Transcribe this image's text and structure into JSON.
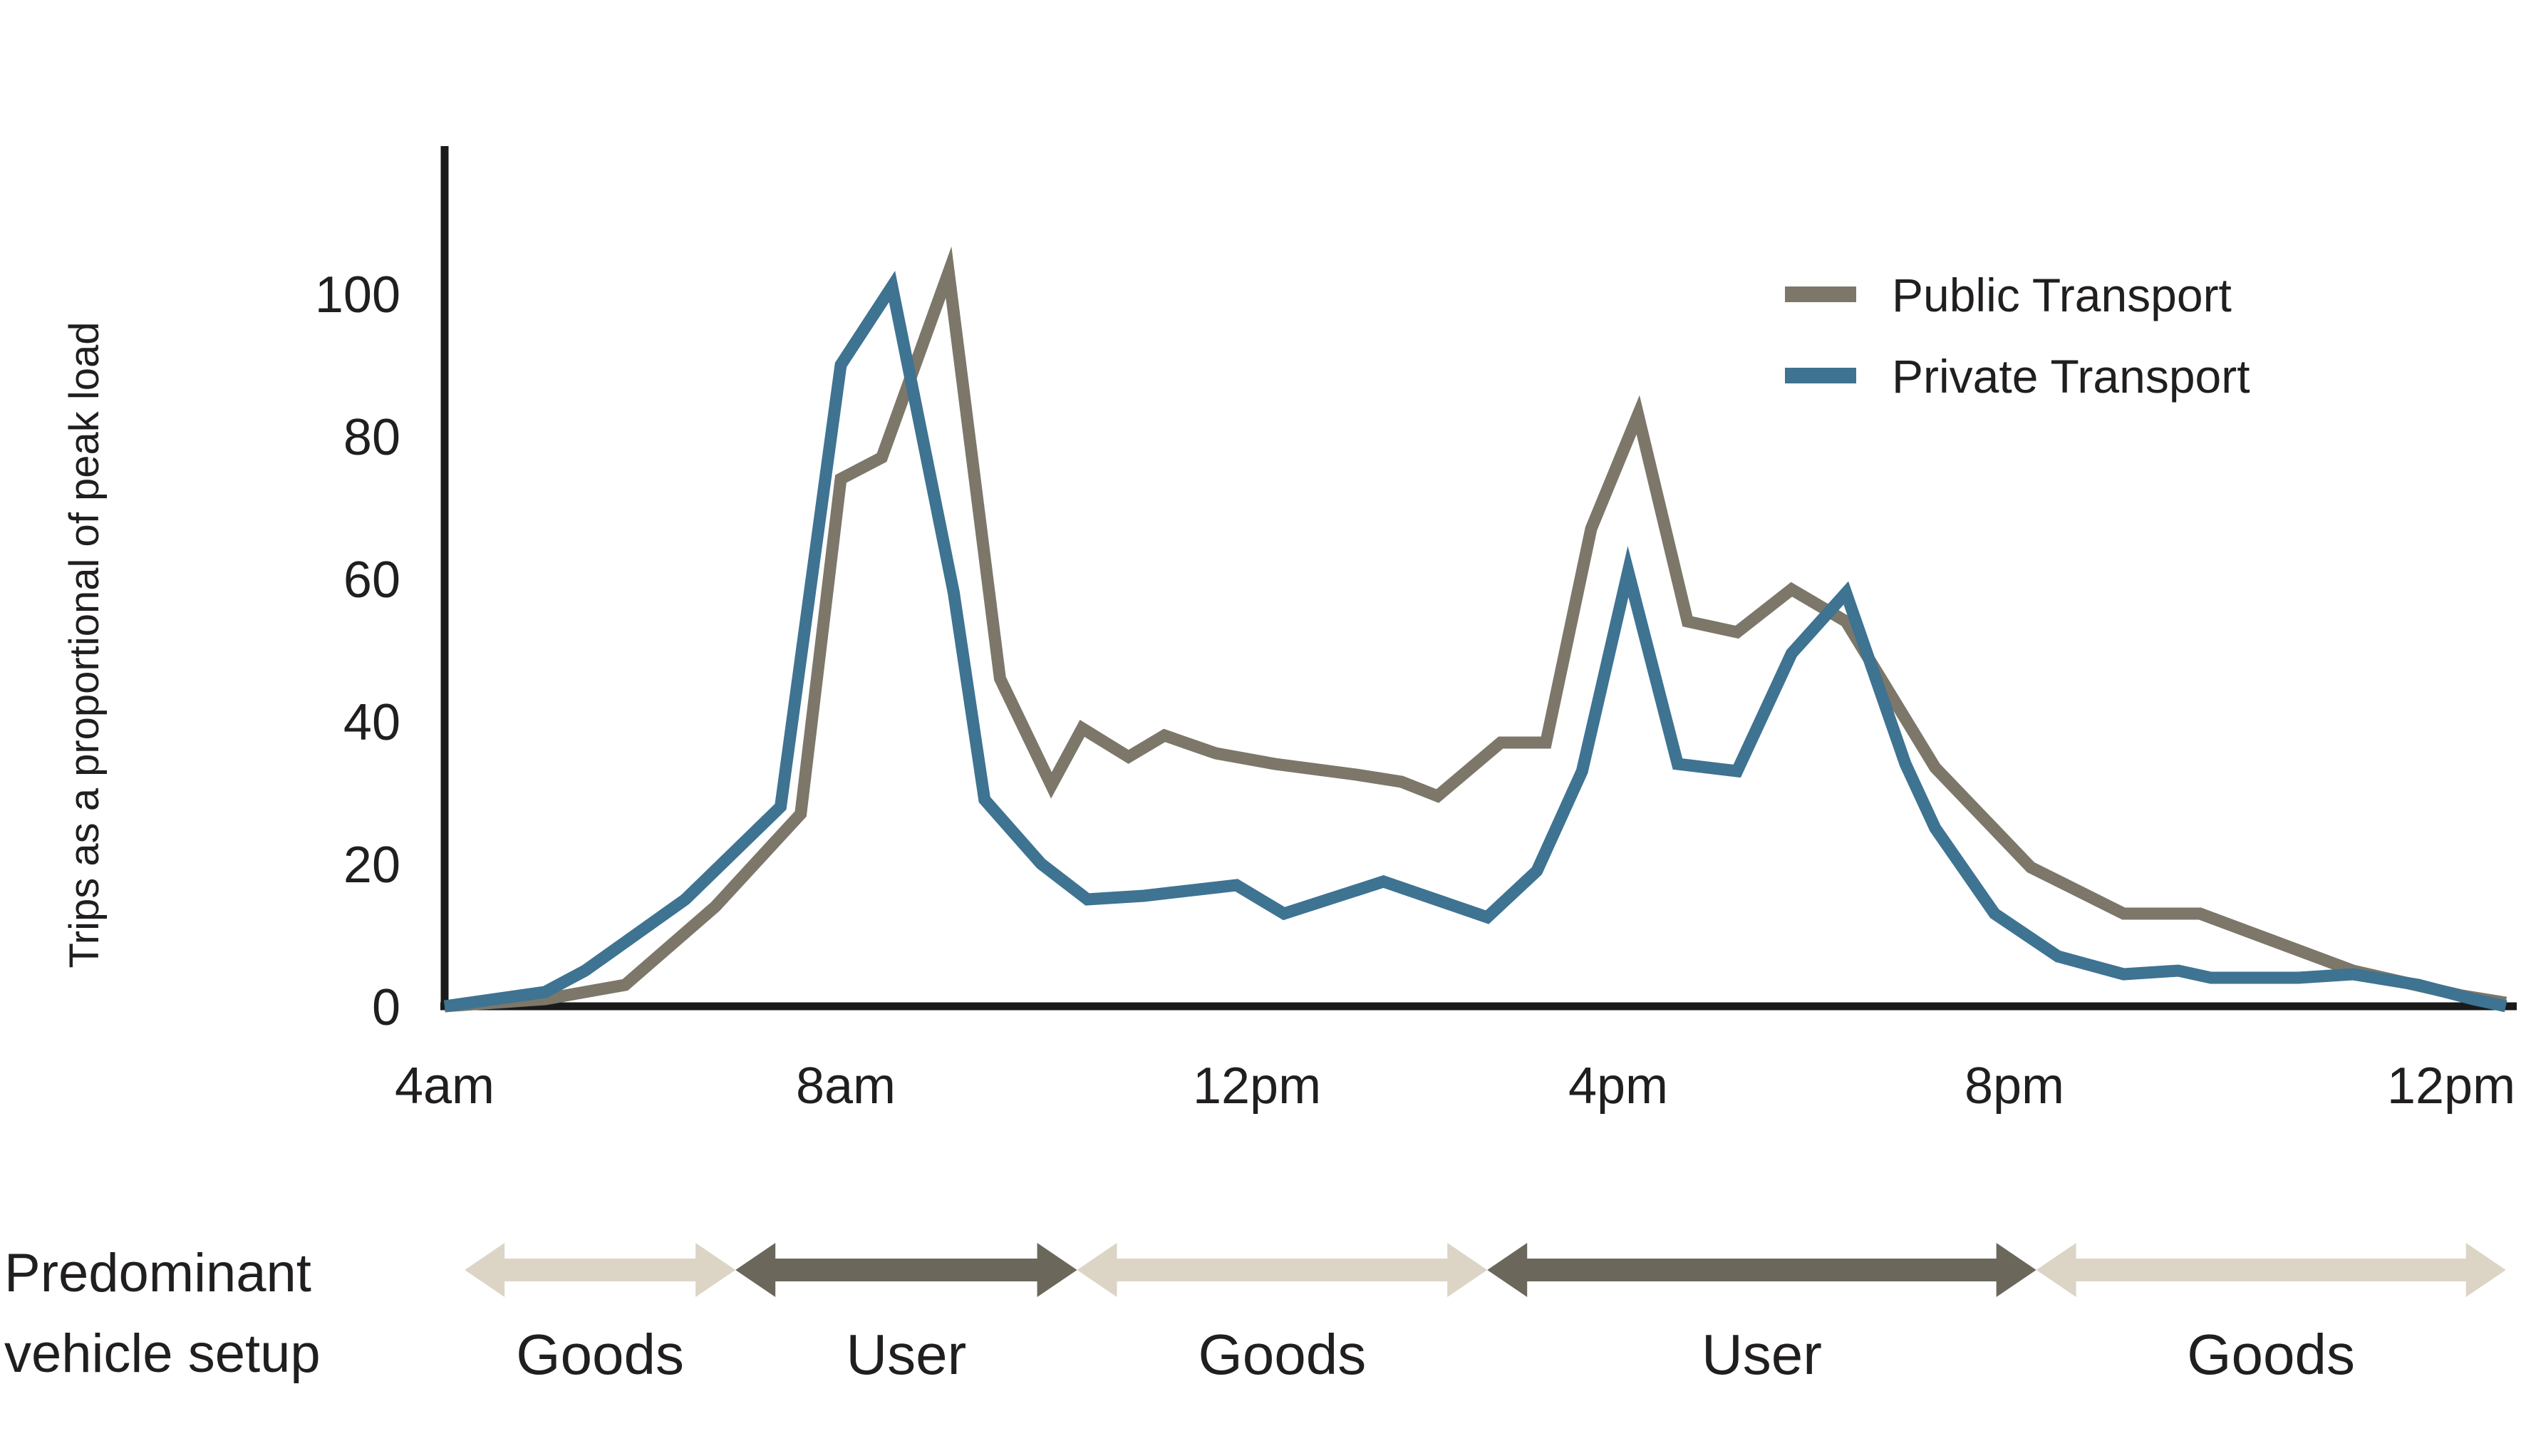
{
  "page": {
    "background": "#ffffff"
  },
  "colors": {
    "axis": "#1A1A1A",
    "text": "#211E1E",
    "public_line": "#7C7769",
    "private_line": "#3E7392",
    "goods_arrow": "#DCD5C6",
    "user_arrow": "#6B675B"
  },
  "chart_data": {
    "type": "line",
    "title": "",
    "xlabel": "",
    "ylabel": "Trips as a proportional of peak load",
    "ylim": [
      0,
      110
    ],
    "grid": false,
    "legend_position": "top-right",
    "yticks": [
      0,
      20,
      40,
      60,
      80,
      100
    ],
    "xticks": [
      {
        "label": "4am",
        "hour": 4
      },
      {
        "label": "8am",
        "hour": 8
      },
      {
        "label": "12pm",
        "hour": 12
      },
      {
        "label": "4pm",
        "hour": 16
      },
      {
        "label": "8pm",
        "hour": 20
      },
      {
        "label": "12pm",
        "hour": 24
      }
    ],
    "series": [
      {
        "name": "Public Transport",
        "color_key": "public_line",
        "points": [
          [
            4.0,
            0
          ],
          [
            5.0,
            1
          ],
          [
            5.8,
            3
          ],
          [
            6.7,
            14
          ],
          [
            7.55,
            27
          ],
          [
            7.95,
            74
          ],
          [
            8.35,
            77
          ],
          [
            9.0,
            103
          ],
          [
            9.5,
            46
          ],
          [
            10.0,
            31
          ],
          [
            10.3,
            39
          ],
          [
            10.75,
            35
          ],
          [
            11.1,
            38
          ],
          [
            11.6,
            35.5
          ],
          [
            12.2,
            34
          ],
          [
            13.1,
            32.5
          ],
          [
            13.6,
            31.5
          ],
          [
            14.0,
            29.5
          ],
          [
            14.7,
            37
          ],
          [
            15.2,
            37
          ],
          [
            15.7,
            67
          ],
          [
            16.2,
            83
          ],
          [
            16.7,
            54
          ],
          [
            17.2,
            52.5
          ],
          [
            17.75,
            58.5
          ],
          [
            18.3,
            54
          ],
          [
            19.2,
            33.5
          ],
          [
            20.15,
            19.5
          ],
          [
            21.0,
            13
          ],
          [
            21.7,
            13
          ],
          [
            23.1,
            5
          ],
          [
            24.1,
            1.5
          ],
          [
            24.5,
            0.5
          ]
        ]
      },
      {
        "name": "Private Transport",
        "color_key": "private_line",
        "points": [
          [
            4.0,
            0
          ],
          [
            5.0,
            2
          ],
          [
            5.4,
            5
          ],
          [
            6.4,
            15
          ],
          [
            7.35,
            28
          ],
          [
            7.95,
            90
          ],
          [
            8.45,
            101
          ],
          [
            9.05,
            58
          ],
          [
            9.35,
            29
          ],
          [
            9.9,
            20
          ],
          [
            10.35,
            15
          ],
          [
            10.9,
            15.5
          ],
          [
            11.8,
            17
          ],
          [
            12.3,
            13
          ],
          [
            13.4,
            17.5
          ],
          [
            14.55,
            12.5
          ],
          [
            15.1,
            19
          ],
          [
            15.6,
            33
          ],
          [
            16.1,
            61
          ],
          [
            16.6,
            34
          ],
          [
            17.2,
            33
          ],
          [
            17.75,
            49.5
          ],
          [
            18.3,
            58
          ],
          [
            18.9,
            34
          ],
          [
            19.2,
            25
          ],
          [
            19.8,
            13
          ],
          [
            20.4,
            7
          ],
          [
            21.0,
            4.5
          ],
          [
            21.5,
            5
          ],
          [
            21.8,
            4
          ],
          [
            22.6,
            4
          ],
          [
            23.1,
            4.5
          ],
          [
            23.7,
            3
          ],
          [
            24.2,
            1
          ],
          [
            24.5,
            0
          ]
        ]
      }
    ]
  },
  "annotation": {
    "title_line1": "Predominant",
    "title_line2": "vehicle setup",
    "segments": [
      {
        "label": "Goods",
        "kind": "goods",
        "start_hour": 4.2,
        "end_hour": 6.9
      },
      {
        "label": "User",
        "kind": "user",
        "start_hour": 6.9,
        "end_hour": 10.25
      },
      {
        "label": "Goods",
        "kind": "goods",
        "start_hour": 10.25,
        "end_hour": 14.55
      },
      {
        "label": "User",
        "kind": "user",
        "start_hour": 14.55,
        "end_hour": 20.2
      },
      {
        "label": "Goods",
        "kind": "goods",
        "start_hour": 20.2,
        "end_hour": 24.5
      }
    ]
  }
}
